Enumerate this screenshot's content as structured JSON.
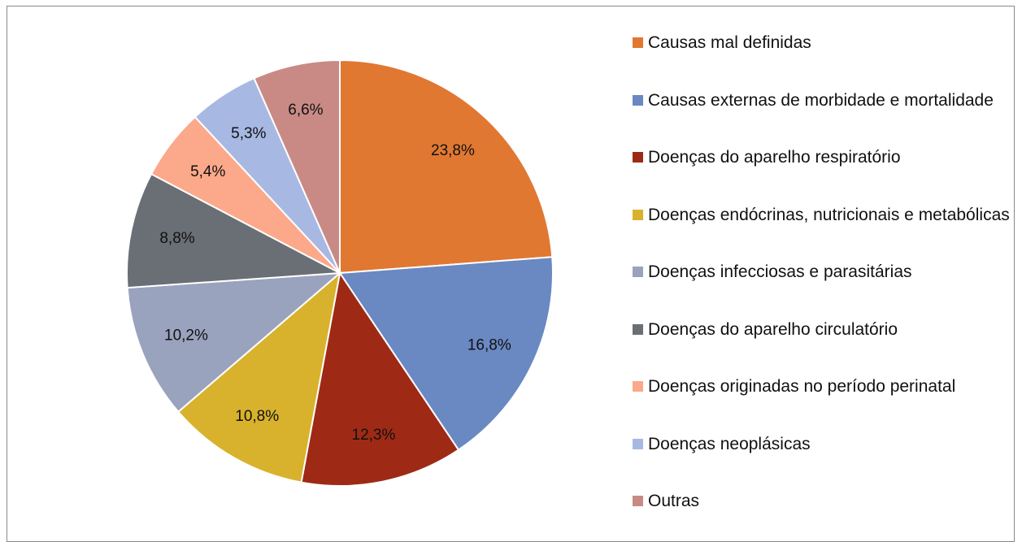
{
  "chart_data": {
    "type": "pie",
    "categories": [
      "Causas mal definidas",
      "Causas externas de morbidade e mortalidade",
      "Doenças do aparelho respiratório",
      "Doenças endócrinas, nutricionais e metabólicas",
      "Doenças infecciosas e parasitárias",
      "Doenças do aparelho circulatório",
      "Doenças originadas no período perinatal",
      "Doenças neoplásicas",
      "Outras"
    ],
    "values": [
      23.8,
      16.8,
      12.3,
      10.8,
      10.2,
      8.8,
      5.4,
      5.3,
      6.6
    ],
    "value_labels": [
      "23,8%",
      "16,8%",
      "12,3%",
      "10,8%",
      "10,2%",
      "8,8%",
      "5,4%",
      "5,3%",
      "6,6%"
    ],
    "colors": [
      "#e07832",
      "#6a88c2",
      "#9e2a15",
      "#d8b22c",
      "#9aa3bd",
      "#6a6e75",
      "#fba98a",
      "#a7b8e3",
      "#c98a85"
    ],
    "legend": "right"
  }
}
